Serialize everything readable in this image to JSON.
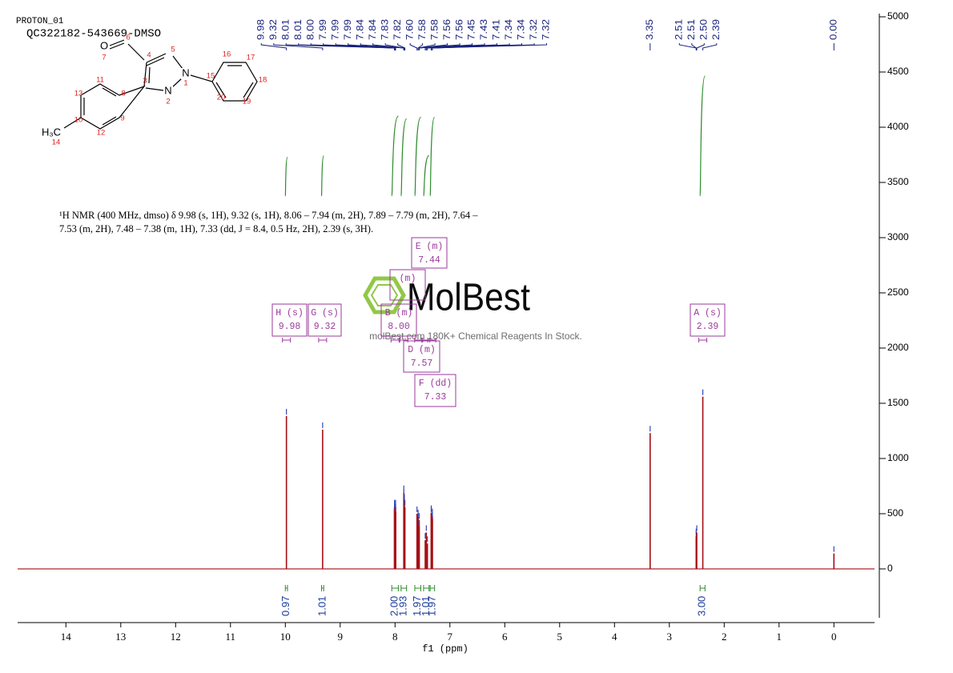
{
  "header": {
    "experiment": "PROTON_01",
    "sample": "QC322182-543669-DMSO"
  },
  "structure": {
    "atoms": [
      "O",
      "N",
      "N",
      "H₃C"
    ],
    "numbers": [
      "7",
      "6",
      "4",
      "5",
      "1",
      "2",
      "3",
      "15",
      "16",
      "17",
      "18",
      "19",
      "20",
      "11",
      "8",
      "13",
      "10",
      "9",
      "12",
      "14"
    ]
  },
  "nmr_text": [
    "¹H NMR (400 MHz, dmso) δ 9.98 (s, 1H), 9.32 (s, 1H), 8.06 – 7.94 (m, 2H), 7.89 – 7.79 (m, 2H), 7.64 –",
    "7.53 (m, 2H), 7.48 – 7.38 (m, 1H), 7.33 (dd, J = 8.4, 0.5 Hz, 2H), 2.39 (s, 3H)."
  ],
  "watermark": {
    "logo": "MolBest",
    "caption": "molBest.com 180K+ Chemical Reagents In Stock."
  },
  "chart_data": {
    "type": "nmr",
    "x_label": "f1 (ppm)",
    "xlim": [
      14.88,
      -0.74
    ],
    "xticks": [
      14,
      13,
      12,
      11,
      10,
      9,
      8,
      7,
      6,
      5,
      4,
      3,
      2,
      1,
      0
    ],
    "ylim": [
      -486,
      5000
    ],
    "yticks": [
      0,
      500,
      1000,
      1500,
      2000,
      2500,
      3000,
      3500,
      4000,
      4500,
      5000
    ],
    "color": "#a50f15",
    "marker_color": "#3344bb",
    "integral_color": "#2e8b2e",
    "peaks": {
      "x": [
        9.98,
        9.32,
        8.01,
        8.01,
        8.0,
        7.99,
        7.99,
        7.99,
        7.84,
        7.84,
        7.83,
        7.82,
        7.6,
        7.58,
        7.58,
        7.56,
        7.56,
        7.45,
        7.43,
        7.41,
        7.34,
        7.34,
        7.32,
        7.32,
        3.35,
        2.51,
        2.51,
        2.5,
        2.39,
        0
      ],
      "labels": [
        "9.98",
        "9.32",
        "8.01",
        "8.01",
        "8.00",
        "7.99",
        "7.99",
        "7.99",
        "7.84",
        "7.84",
        "7.83",
        "7.82",
        "7.60",
        "7.58",
        "7.58",
        "7.56",
        "7.56",
        "7.45",
        "7.43",
        "7.41",
        "7.34",
        "7.34",
        "7.32",
        "7.32",
        "3.35",
        "2.51",
        "2.51",
        "2.50",
        "2.39",
        "0.00"
      ],
      "intensity": [
        1384,
        1261,
        540,
        560,
        520,
        520,
        560,
        500,
        650,
        690,
        610,
        560,
        500,
        430,
        470,
        440,
        380,
        260,
        330,
        230,
        500,
        510,
        480,
        450,
        1230,
        280,
        300,
        330,
        1560,
        140
      ]
    },
    "integrals": [
      {
        "from": 10.0,
        "to": 9.96,
        "value": 0.97
      },
      {
        "from": 9.34,
        "to": 9.3,
        "value": 1.01
      },
      {
        "from": 8.06,
        "to": 7.94,
        "value": 2.0,
        "value_label": "2.00"
      },
      {
        "from": 7.89,
        "to": 7.79,
        "value": 1.93
      },
      {
        "from": 7.64,
        "to": 7.53,
        "value": 1.97
      },
      {
        "from": 7.48,
        "to": 7.38,
        "value": 1.01
      },
      {
        "from": 7.36,
        "to": 7.28,
        "value": 1.97
      },
      {
        "from": 2.44,
        "to": 2.35,
        "value": 3.0,
        "value_label": "3.00"
      }
    ],
    "multiplets": [
      {
        "name": "H (s)",
        "shift": "9.98"
      },
      {
        "name": "G (s)",
        "shift": "9.32"
      },
      {
        "name": "B (m)",
        "shift": "8.00"
      },
      {
        "name": "(m)"
      },
      {
        "name": "E (m)",
        "shift": "7.44"
      },
      {
        "name": "D (m)",
        "shift": "7.57"
      },
      {
        "name": "F (dd)",
        "shift": "7.33"
      },
      {
        "name": "A (s)",
        "shift": "2.39"
      }
    ]
  }
}
